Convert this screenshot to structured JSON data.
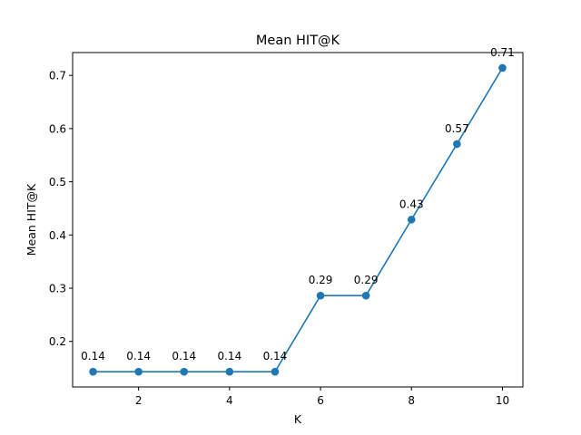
{
  "chart_data": {
    "type": "line",
    "title": "Mean HIT@K",
    "xlabel": "K",
    "ylabel": "Mean HIT@K",
    "x": [
      1,
      2,
      3,
      4,
      5,
      6,
      7,
      8,
      9,
      10
    ],
    "series": [
      {
        "values": [
          0.143,
          0.143,
          0.143,
          0.143,
          0.143,
          0.286,
          0.286,
          0.429,
          0.571,
          0.714
        ],
        "labels": [
          "0.14",
          "0.14",
          "0.14",
          "0.14",
          "0.14",
          "0.29",
          "0.29",
          "0.43",
          "0.57",
          "0.71"
        ],
        "color": "#1f77b4",
        "marker": "circle"
      }
    ],
    "xlim": [
      0.55,
      10.45
    ],
    "ylim": [
      0.1143,
      0.7429
    ],
    "xticks": [
      2,
      4,
      6,
      8,
      10
    ],
    "xtick_labels": [
      "2",
      "4",
      "6",
      "8",
      "10"
    ],
    "yticks": [
      0.2,
      0.3,
      0.4,
      0.5,
      0.6,
      0.7
    ],
    "ytick_labels": [
      "0.2",
      "0.3",
      "0.4",
      "0.5",
      "0.6",
      "0.7"
    ],
    "grid": false,
    "legend": "none"
  }
}
